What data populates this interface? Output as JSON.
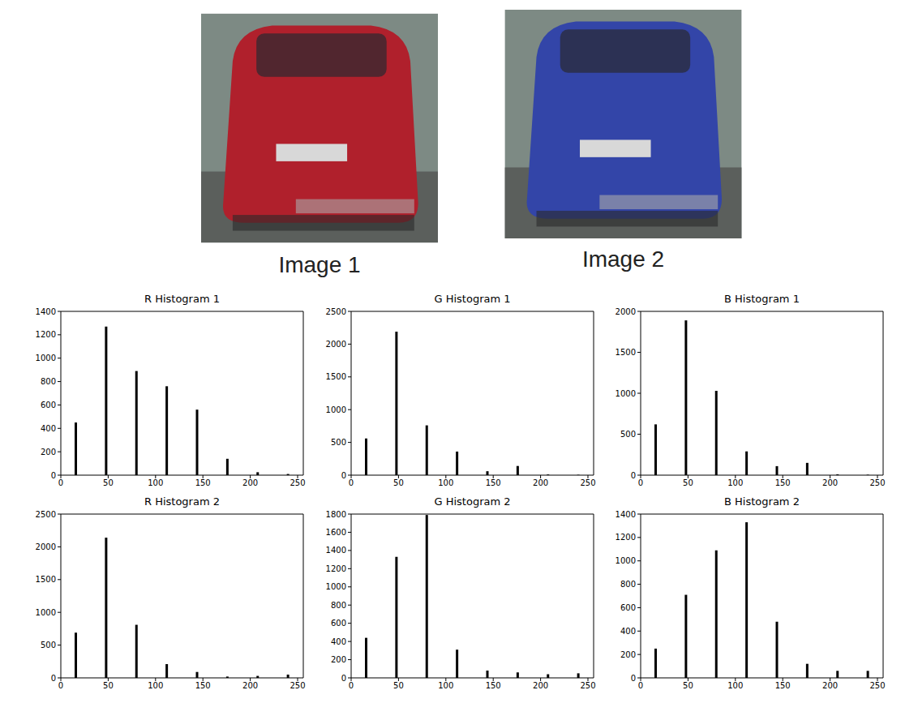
{
  "images": [
    {
      "caption": "Image 1",
      "color": "#b0202c"
    },
    {
      "caption": "Image 2",
      "color": "#3345a8"
    }
  ],
  "chart_data": [
    {
      "type": "bar",
      "title": "R Histogram 1",
      "x": [
        16,
        48,
        80,
        112,
        144,
        176,
        208,
        240
      ],
      "values": [
        450,
        1270,
        890,
        760,
        560,
        140,
        25,
        10
      ],
      "color": "#000000",
      "xlim": [
        0,
        256
      ],
      "xticks": [
        0,
        50,
        100,
        150,
        200,
        250
      ],
      "ylim": [
        0,
        1400
      ],
      "yticks": [
        0,
        200,
        400,
        600,
        800,
        1000,
        1200,
        1400
      ]
    },
    {
      "type": "bar",
      "title": "G Histogram 1",
      "x": [
        16,
        48,
        80,
        112,
        144,
        176,
        208,
        240
      ],
      "values": [
        560,
        2190,
        760,
        360,
        60,
        140,
        10,
        5
      ],
      "color": "#000000",
      "xlim": [
        0,
        256
      ],
      "xticks": [
        0,
        50,
        100,
        150,
        200,
        250
      ],
      "ylim": [
        0,
        2500
      ],
      "yticks": [
        0,
        500,
        1000,
        1500,
        2000,
        2500
      ]
    },
    {
      "type": "bar",
      "title": "B Histogram 1",
      "x": [
        16,
        48,
        80,
        112,
        144,
        176,
        208,
        240
      ],
      "values": [
        620,
        1890,
        1030,
        290,
        110,
        150,
        10,
        5
      ],
      "color": "#000000",
      "xlim": [
        0,
        256
      ],
      "xticks": [
        0,
        50,
        100,
        150,
        200,
        250
      ],
      "ylim": [
        0,
        2000
      ],
      "yticks": [
        0,
        500,
        1000,
        1500,
        2000
      ]
    },
    {
      "type": "bar",
      "title": "R Histogram 2",
      "x": [
        16,
        48,
        80,
        112,
        144,
        176,
        208,
        240
      ],
      "values": [
        690,
        2140,
        810,
        210,
        90,
        20,
        30,
        50
      ],
      "color": "#000000",
      "xlim": [
        0,
        256
      ],
      "xticks": [
        0,
        50,
        100,
        150,
        200,
        250
      ],
      "ylim": [
        0,
        2500
      ],
      "yticks": [
        0,
        500,
        1000,
        1500,
        2000,
        2500
      ]
    },
    {
      "type": "bar",
      "title": "G Histogram 2",
      "x": [
        16,
        48,
        80,
        112,
        144,
        176,
        208,
        240
      ],
      "values": [
        440,
        1330,
        1790,
        310,
        80,
        60,
        40,
        50
      ],
      "color": "#000000",
      "xlim": [
        0,
        256
      ],
      "xticks": [
        0,
        50,
        100,
        150,
        200,
        250
      ],
      "ylim": [
        0,
        1800
      ],
      "yticks": [
        0,
        200,
        400,
        600,
        800,
        1000,
        1200,
        1400,
        1600,
        1800
      ]
    },
    {
      "type": "bar",
      "title": "B Histogram 2",
      "x": [
        16,
        48,
        80,
        112,
        144,
        176,
        208,
        240
      ],
      "values": [
        250,
        710,
        1090,
        1330,
        480,
        120,
        60,
        60
      ],
      "color": "#000000",
      "xlim": [
        0,
        256
      ],
      "xticks": [
        0,
        50,
        100,
        150,
        200,
        250
      ],
      "ylim": [
        0,
        1400
      ],
      "yticks": [
        0,
        200,
        400,
        600,
        800,
        1000,
        1200,
        1400
      ]
    }
  ]
}
